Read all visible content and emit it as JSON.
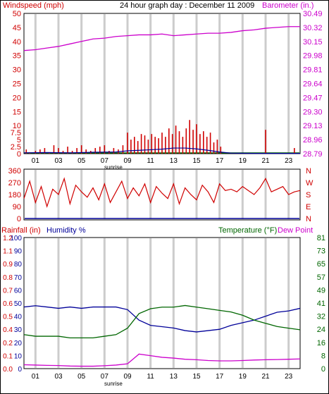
{
  "header": {
    "title": "24 hour graph day : December 11 2009",
    "left_label": "Windspeed (mph)",
    "right_label": "Barometer (in.)"
  },
  "bottom_header": {
    "left_a": "Rainfall (in)",
    "left_b": "Humidity %",
    "right_a": "Temperature (°F)",
    "right_b": "Dew Point"
  },
  "x_axis": {
    "ticks": [
      "01",
      "03",
      "05",
      "07",
      "09",
      "11",
      "13",
      "15",
      "17",
      "19",
      "21",
      "23"
    ],
    "sunrise_label": "sunrise"
  },
  "colors": {
    "wind": "#d00000",
    "wind_axis": "#d00000",
    "baro": "#cc00cc",
    "humidity": "#000099",
    "temperature": "#006600",
    "dewpoint": "#cc00cc",
    "gust": "#000099",
    "grid": "#cccccc"
  },
  "chart_data": [
    {
      "type": "bar",
      "name": "windspeed-barometer",
      "x_range_hours": [
        0,
        24
      ],
      "y_left": {
        "label": "Windspeed (mph)",
        "ticks": [
          "0",
          "2.5",
          "5",
          "7.5",
          "10",
          "15",
          "20",
          "25",
          "30",
          "35",
          "40",
          "45",
          "50"
        ],
        "ylim": [
          0,
          50
        ]
      },
      "y_right": {
        "label": "Barometer (in.)",
        "ticks": [
          "28.79",
          "28.96",
          "29.13",
          "29.30",
          "29.47",
          "29.64",
          "29.81",
          "29.98",
          "30.15",
          "30.32",
          "30.49"
        ],
        "ylim": [
          28.79,
          30.49
        ]
      },
      "barometer": {
        "x": [
          0,
          1,
          2,
          3,
          4,
          5,
          6,
          7,
          8,
          9,
          10,
          11,
          12,
          13,
          14,
          15,
          16,
          17,
          18,
          19,
          20,
          21,
          22,
          23,
          24
        ],
        "y": [
          30.04,
          30.05,
          30.07,
          30.09,
          30.12,
          30.15,
          30.18,
          30.19,
          30.21,
          30.22,
          30.23,
          30.23,
          30.24,
          30.22,
          30.23,
          30.24,
          30.25,
          30.25,
          30.26,
          30.28,
          30.29,
          30.31,
          30.32,
          30.33,
          30.33
        ]
      },
      "wind_bars": {
        "x": [
          0.2,
          0.5,
          1.0,
          1.4,
          1.8,
          2.2,
          2.6,
          3.0,
          3.4,
          3.8,
          4.2,
          4.6,
          5.0,
          5.4,
          5.8,
          6.2,
          6.6,
          7.0,
          7.4,
          7.8,
          8.2,
          8.6,
          9.0,
          9.3,
          9.6,
          9.9,
          10.2,
          10.5,
          10.8,
          11.1,
          11.4,
          11.7,
          12.0,
          12.3,
          12.6,
          12.9,
          13.2,
          13.5,
          13.8,
          14.1,
          14.4,
          14.7,
          15.0,
          15.3,
          15.6,
          15.9,
          16.2,
          16.5,
          16.8,
          17.1,
          21.0,
          23.5
        ],
        "y": [
          1.5,
          0.5,
          1.0,
          1.5,
          2.0,
          0.5,
          3.0,
          2.0,
          1.0,
          2.5,
          1.0,
          2.0,
          3.0,
          1.5,
          1.0,
          2.0,
          2.5,
          3.0,
          1.0,
          2.0,
          1.5,
          3.0,
          7.5,
          5.0,
          6.0,
          4.5,
          7.0,
          6.5,
          5.0,
          7.0,
          6.0,
          5.5,
          7.5,
          6.0,
          9.0,
          7.0,
          10.0,
          8.0,
          6.0,
          9.0,
          12.0,
          8.5,
          10.5,
          7.0,
          8.0,
          6.0,
          7.5,
          4.0,
          5.0,
          2.5,
          8.5,
          2.0
        ]
      },
      "wind_avg": {
        "x": [
          0,
          2,
          4,
          6,
          8,
          9,
          10,
          11,
          12,
          13,
          14,
          15,
          16,
          17,
          18,
          20,
          22,
          24
        ],
        "y": [
          0.3,
          0.4,
          0.3,
          0.5,
          0.6,
          1.0,
          1.2,
          1.4,
          1.6,
          2.0,
          2.0,
          1.7,
          1.2,
          0.6,
          0.2,
          0.1,
          0.1,
          0.1
        ]
      }
    },
    {
      "type": "line",
      "name": "wind-direction",
      "y_left_ticks": [
        "0",
        "90",
        "180",
        "270",
        "360"
      ],
      "y_right_ticks": [
        "N",
        "E",
        "S",
        "W",
        "N"
      ],
      "ylim": [
        0,
        360
      ],
      "x": [
        0,
        0.5,
        1,
        1.5,
        2,
        2.5,
        3,
        3.5,
        4,
        4.5,
        5,
        5.5,
        6,
        6.5,
        7,
        7.5,
        8,
        8.5,
        9,
        9.5,
        10,
        10.5,
        11,
        11.5,
        12,
        12.5,
        13,
        13.5,
        14,
        14.5,
        15,
        15.5,
        16,
        16.5,
        17,
        17.5,
        18,
        18.5,
        19,
        19.5,
        20,
        20.5,
        21,
        21.5,
        22,
        22.5,
        23,
        23.5,
        24
      ],
      "y": [
        150,
        280,
        120,
        240,
        90,
        220,
        180,
        300,
        110,
        250,
        200,
        160,
        230,
        140,
        260,
        120,
        200,
        280,
        150,
        230,
        170,
        260,
        120,
        240,
        190,
        150,
        260,
        110,
        230,
        180,
        140,
        250,
        200,
        120,
        260,
        210,
        220,
        200,
        240,
        210,
        180,
        230,
        300,
        200,
        220,
        240,
        180,
        200,
        210
      ]
    },
    {
      "type": "line",
      "name": "humidity-temperature",
      "y_left_a": {
        "label": "Rainfall (in)",
        "ticks": [
          "0.0",
          "0.1",
          "0.2",
          "0.4",
          "0.5",
          "0.6",
          "0.7",
          "0.8",
          "0.9",
          "1.1",
          "1.2"
        ]
      },
      "y_left_b": {
        "label": "Humidity %",
        "ticks": [
          "0",
          "10",
          "20",
          "30",
          "40",
          "50",
          "60",
          "70",
          "80",
          "90",
          "100"
        ],
        "ylim": [
          0,
          100
        ]
      },
      "y_right": {
        "label": "Temperature (°F)",
        "ticks": [
          "0",
          "8",
          "16",
          "24",
          "32",
          "41",
          "49",
          "57",
          "65",
          "73",
          "81"
        ],
        "ylim": [
          0,
          81
        ]
      },
      "series": [
        {
          "name": "Humidity %",
          "x": [
            0,
            1,
            2,
            3,
            4,
            5,
            6,
            7,
            8,
            9,
            10,
            11,
            12,
            13,
            14,
            15,
            16,
            17,
            18,
            19,
            20,
            21,
            22,
            23,
            24
          ],
          "y": [
            47,
            48,
            47,
            46,
            47,
            46,
            47,
            47,
            47,
            45,
            37,
            33,
            32,
            31,
            29,
            28,
            29,
            30,
            33,
            35,
            37,
            40,
            43,
            44,
            46
          ]
        },
        {
          "name": "Temperature (°F)",
          "x": [
            0,
            1,
            2,
            3,
            4,
            5,
            6,
            7,
            8,
            9,
            10,
            11,
            12,
            13,
            14,
            15,
            16,
            17,
            18,
            19,
            20,
            21,
            22,
            23,
            24
          ],
          "y": [
            21,
            20,
            20,
            20,
            19,
            19,
            19,
            20,
            21,
            25,
            34,
            37,
            38,
            38,
            39,
            38,
            37,
            36,
            35,
            33,
            30,
            28,
            26,
            25,
            24
          ]
        },
        {
          "name": "Dew Point",
          "x": [
            0,
            1,
            2,
            3,
            4,
            5,
            6,
            7,
            8,
            9,
            10,
            11,
            12,
            13,
            14,
            15,
            16,
            17,
            18,
            19,
            20,
            21,
            22,
            23,
            24
          ],
          "y": [
            2.4,
            2.2,
            2.0,
            1.9,
            1.6,
            1.5,
            1.5,
            1.8,
            2.2,
            3.0,
            9.0,
            8.0,
            7.0,
            6.5,
            5.8,
            5.5,
            5.0,
            4.8,
            4.8,
            5.0,
            5.3,
            5.5,
            5.6,
            5.8,
            6.0
          ]
        }
      ]
    }
  ]
}
